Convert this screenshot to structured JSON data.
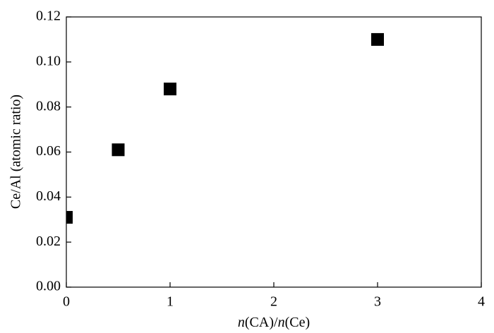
{
  "chart_data": {
    "type": "scatter",
    "xlabel": "n(CA)/n(Ce)",
    "ylabel": "Ce/Al (atomic ratio)",
    "series": [
      {
        "color": "#000000",
        "x": [
          0,
          0.5,
          1,
          3
        ],
        "values": [
          0.031,
          0.061,
          0.088,
          0.11
        ]
      }
    ],
    "xlim": [
      0,
      4
    ],
    "xticks": [
      0,
      1,
      2,
      3,
      4
    ],
    "ylim": [
      0,
      0.12
    ],
    "yticks": [
      {
        "value": 0,
        "label": "0.00"
      },
      {
        "value": 0.02,
        "label": "0.02"
      },
      {
        "value": 0.04,
        "label": "0.04"
      },
      {
        "value": 0.06,
        "label": "0.06"
      },
      {
        "value": 0.08,
        "label": "0.08"
      },
      {
        "value": 0.1,
        "label": "0.10"
      },
      {
        "value": 0.12,
        "label": "0.12"
      }
    ],
    "grid": false
  }
}
